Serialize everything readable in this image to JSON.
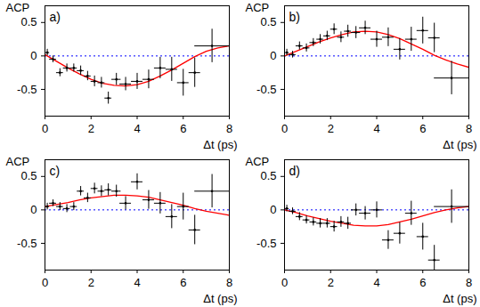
{
  "chart_data": [
    {
      "type": "scatter",
      "title": "a)",
      "x_label": "Δt (ps)",
      "y_label": "ACP",
      "xlim": [
        0,
        8
      ],
      "xticks": [
        0,
        2,
        4,
        6,
        8
      ],
      "ylim": [
        -0.9,
        0.75
      ],
      "yticks": [
        -0.5,
        0,
        0.5
      ],
      "points": {
        "color": "black",
        "x": [
          0.1,
          0.35,
          0.65,
          0.95,
          1.25,
          1.55,
          1.85,
          2.15,
          2.45,
          2.75,
          3.1,
          3.5,
          4.0,
          4.5,
          5.0,
          5.5,
          6.0,
          6.5,
          7.25
        ],
        "values": [
          0.05,
          -0.05,
          -0.25,
          -0.18,
          -0.18,
          -0.22,
          -0.3,
          -0.38,
          -0.4,
          -0.63,
          -0.35,
          -0.42,
          -0.38,
          -0.35,
          -0.18,
          -0.2,
          -0.4,
          -0.25,
          0.15
        ],
        "x_error": [
          0.1,
          0.15,
          0.15,
          0.15,
          0.15,
          0.15,
          0.15,
          0.15,
          0.15,
          0.15,
          0.2,
          0.25,
          0.25,
          0.25,
          0.25,
          0.25,
          0.25,
          0.25,
          0.75
        ],
        "y_error": [
          0.05,
          0.05,
          0.06,
          0.06,
          0.06,
          0.07,
          0.07,
          0.08,
          0.08,
          0.09,
          0.09,
          0.1,
          0.12,
          0.14,
          0.16,
          0.18,
          0.2,
          0.22,
          0.25
        ]
      },
      "fit": {
        "color": "red",
        "x": [
          0,
          0.5,
          1,
          1.5,
          2,
          2.5,
          3,
          3.5,
          4,
          4.5,
          5,
          5.5,
          6,
          6.5,
          7,
          7.5,
          8
        ],
        "values": [
          0.02,
          -0.08,
          -0.18,
          -0.27,
          -0.35,
          -0.41,
          -0.44,
          -0.45,
          -0.43,
          -0.38,
          -0.3,
          -0.21,
          -0.11,
          -0.01,
          0.07,
          0.12,
          0.15
        ]
      },
      "baseline": {
        "value": 0,
        "color": "blue",
        "line_style": "dotted"
      }
    },
    {
      "type": "scatter",
      "title": "b)",
      "x_label": "Δt (ps)",
      "y_label": "ACP",
      "xlim": [
        0,
        8
      ],
      "xticks": [
        0,
        2,
        4,
        6,
        8
      ],
      "ylim": [
        -0.9,
        0.75
      ],
      "yticks": [
        -0.5,
        0,
        0.5
      ],
      "points": {
        "color": "black",
        "x": [
          0.1,
          0.35,
          0.65,
          0.95,
          1.25,
          1.55,
          1.85,
          2.15,
          2.45,
          2.75,
          3.1,
          3.5,
          4.0,
          4.5,
          5.0,
          5.5,
          6.0,
          6.5,
          7.25
        ],
        "values": [
          0.05,
          0.02,
          0.15,
          0.12,
          0.2,
          0.25,
          0.3,
          0.4,
          0.28,
          0.37,
          0.35,
          0.42,
          0.25,
          0.28,
          0.1,
          0.25,
          0.38,
          0.27,
          -0.33
        ],
        "x_error": [
          0.1,
          0.15,
          0.15,
          0.15,
          0.15,
          0.15,
          0.15,
          0.15,
          0.15,
          0.15,
          0.2,
          0.25,
          0.25,
          0.25,
          0.25,
          0.25,
          0.25,
          0.25,
          0.75
        ],
        "y_error": [
          0.05,
          0.05,
          0.06,
          0.06,
          0.06,
          0.07,
          0.07,
          0.08,
          0.08,
          0.09,
          0.09,
          0.1,
          0.12,
          0.14,
          0.16,
          0.18,
          0.2,
          0.22,
          0.25
        ]
      },
      "fit": {
        "color": "red",
        "x": [
          0,
          0.5,
          1,
          1.5,
          2,
          2.5,
          3,
          3.5,
          4,
          4.5,
          5,
          5.5,
          6,
          6.5,
          7,
          7.5,
          8
        ],
        "values": [
          0.0,
          0.07,
          0.14,
          0.21,
          0.27,
          0.32,
          0.36,
          0.37,
          0.36,
          0.32,
          0.26,
          0.18,
          0.1,
          0.01,
          -0.06,
          -0.12,
          -0.17
        ]
      },
      "baseline": {
        "value": 0,
        "color": "blue",
        "line_style": "dotted"
      }
    },
    {
      "type": "scatter",
      "title": "c)",
      "x_label": "Δt (ps)",
      "y_label": "ACP",
      "xlim": [
        0,
        8
      ],
      "xticks": [
        0,
        2,
        4,
        6,
        8
      ],
      "ylim": [
        -0.9,
        0.75
      ],
      "yticks": [
        -0.5,
        0,
        0.5
      ],
      "points": {
        "color": "black",
        "x": [
          0.1,
          0.35,
          0.65,
          0.95,
          1.25,
          1.55,
          1.85,
          2.15,
          2.45,
          2.75,
          3.1,
          3.5,
          4.0,
          4.5,
          5.0,
          5.5,
          6.0,
          6.5,
          7.25
        ],
        "values": [
          0.05,
          0.1,
          0.05,
          0.02,
          0.05,
          0.28,
          0.18,
          0.32,
          0.28,
          0.3,
          0.28,
          0.1,
          0.42,
          0.15,
          0.1,
          -0.1,
          0.05,
          -0.3,
          0.28
        ],
        "x_error": [
          0.1,
          0.15,
          0.15,
          0.15,
          0.15,
          0.15,
          0.15,
          0.15,
          0.15,
          0.15,
          0.2,
          0.25,
          0.25,
          0.25,
          0.25,
          0.25,
          0.25,
          0.25,
          0.75
        ],
        "y_error": [
          0.05,
          0.05,
          0.06,
          0.06,
          0.06,
          0.07,
          0.07,
          0.08,
          0.08,
          0.09,
          0.09,
          0.1,
          0.12,
          0.14,
          0.16,
          0.18,
          0.2,
          0.22,
          0.25
        ]
      },
      "fit": {
        "color": "red",
        "x": [
          0,
          0.5,
          1,
          1.5,
          2,
          2.5,
          3,
          3.5,
          4,
          4.5,
          5,
          5.5,
          6,
          6.5,
          7,
          7.5,
          8
        ],
        "values": [
          0.05,
          0.08,
          0.11,
          0.15,
          0.18,
          0.2,
          0.22,
          0.22,
          0.21,
          0.19,
          0.15,
          0.11,
          0.07,
          0.02,
          -0.02,
          -0.05,
          -0.08
        ]
      },
      "baseline": {
        "value": 0,
        "color": "blue",
        "line_style": "dotted"
      }
    },
    {
      "type": "scatter",
      "title": "d)",
      "x_label": "Δt (ps)",
      "y_label": "ACP",
      "xlim": [
        0,
        8
      ],
      "xticks": [
        0,
        2,
        4,
        6,
        8
      ],
      "ylim": [
        -0.9,
        0.75
      ],
      "yticks": [
        -0.5,
        0,
        0.5
      ],
      "points": {
        "color": "black",
        "x": [
          0.1,
          0.35,
          0.65,
          0.95,
          1.25,
          1.55,
          1.85,
          2.15,
          2.45,
          2.75,
          3.1,
          3.5,
          4.0,
          4.5,
          5.0,
          5.5,
          6.0,
          6.5,
          7.25
        ],
        "values": [
          0.02,
          -0.02,
          -0.1,
          -0.15,
          -0.18,
          -0.2,
          -0.2,
          -0.25,
          -0.18,
          -0.2,
          0.0,
          -0.05,
          0.0,
          -0.45,
          -0.35,
          -0.05,
          -0.4,
          -0.75,
          0.05
        ],
        "x_error": [
          0.1,
          0.15,
          0.15,
          0.15,
          0.15,
          0.15,
          0.15,
          0.15,
          0.15,
          0.15,
          0.2,
          0.25,
          0.25,
          0.25,
          0.25,
          0.25,
          0.25,
          0.25,
          0.75
        ],
        "y_error": [
          0.05,
          0.05,
          0.06,
          0.06,
          0.06,
          0.07,
          0.07,
          0.08,
          0.08,
          0.09,
          0.09,
          0.1,
          0.12,
          0.14,
          0.16,
          0.18,
          0.2,
          0.22,
          0.25
        ]
      },
      "fit": {
        "color": "red",
        "x": [
          0,
          0.5,
          1,
          1.5,
          2,
          2.5,
          3,
          3.5,
          4,
          4.5,
          5,
          5.5,
          6,
          6.5,
          7,
          7.5,
          8
        ],
        "values": [
          0.0,
          -0.04,
          -0.09,
          -0.13,
          -0.17,
          -0.2,
          -0.23,
          -0.24,
          -0.24,
          -0.22,
          -0.18,
          -0.14,
          -0.09,
          -0.04,
          0.0,
          0.03,
          0.05
        ]
      },
      "baseline": {
        "value": 0,
        "color": "blue",
        "line_style": "dotted"
      }
    }
  ]
}
